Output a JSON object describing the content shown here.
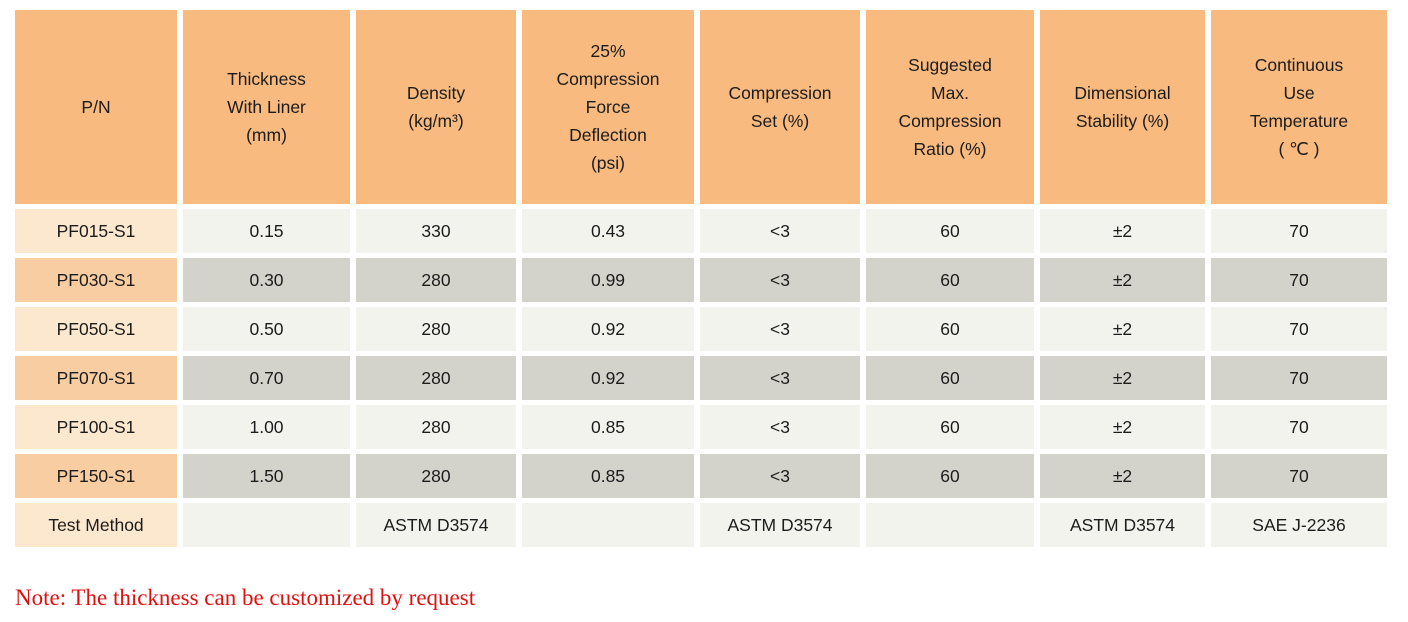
{
  "colors": {
    "header-orange": "#f8ba7f",
    "pn-light": "#fce7cf",
    "pn-dark": "#f9cda2",
    "cell-light": "#f3f3ee",
    "cell-dark": "#d3d3cc",
    "note-red": "#e01010"
  },
  "table": {
    "headers": [
      "P/N",
      "Thickness\nWith Liner\n(mm)",
      "Density\n(kg/m³)",
      "25%\nCompression\nForce\nDeflection\n(psi)",
      "Compression\nSet (%)",
      "Suggested\nMax.\nCompression\nRatio (%)",
      "Dimensional\nStability (%)",
      "Continuous\nUse\nTemperature\n( ℃ )"
    ],
    "rows": [
      {
        "pn": "PF015-S1",
        "cells": [
          "0.15",
          "330",
          "0.43",
          "<3",
          "60",
          "±2",
          "70"
        ]
      },
      {
        "pn": "PF030-S1",
        "cells": [
          "0.30",
          "280",
          "0.99",
          "<3",
          "60",
          "±2",
          "70"
        ]
      },
      {
        "pn": "PF050-S1",
        "cells": [
          "0.50",
          "280",
          "0.92",
          "<3",
          "60",
          "±2",
          "70"
        ]
      },
      {
        "pn": "PF070-S1",
        "cells": [
          "0.70",
          "280",
          "0.92",
          "<3",
          "60",
          "±2",
          "70"
        ]
      },
      {
        "pn": "PF100-S1",
        "cells": [
          "1.00",
          "280",
          "0.85",
          "<3",
          "60",
          "±2",
          "70"
        ]
      },
      {
        "pn": "PF150-S1",
        "cells": [
          "1.50",
          "280",
          "0.85",
          "<3",
          "60",
          "±2",
          "70"
        ]
      },
      {
        "pn": "Test Method",
        "cells": [
          "",
          "ASTM D3574",
          "",
          "ASTM D3574",
          "",
          "ASTM D3574",
          "SAE J-2236"
        ]
      }
    ]
  },
  "note": "Note: The thickness can be customized by request"
}
